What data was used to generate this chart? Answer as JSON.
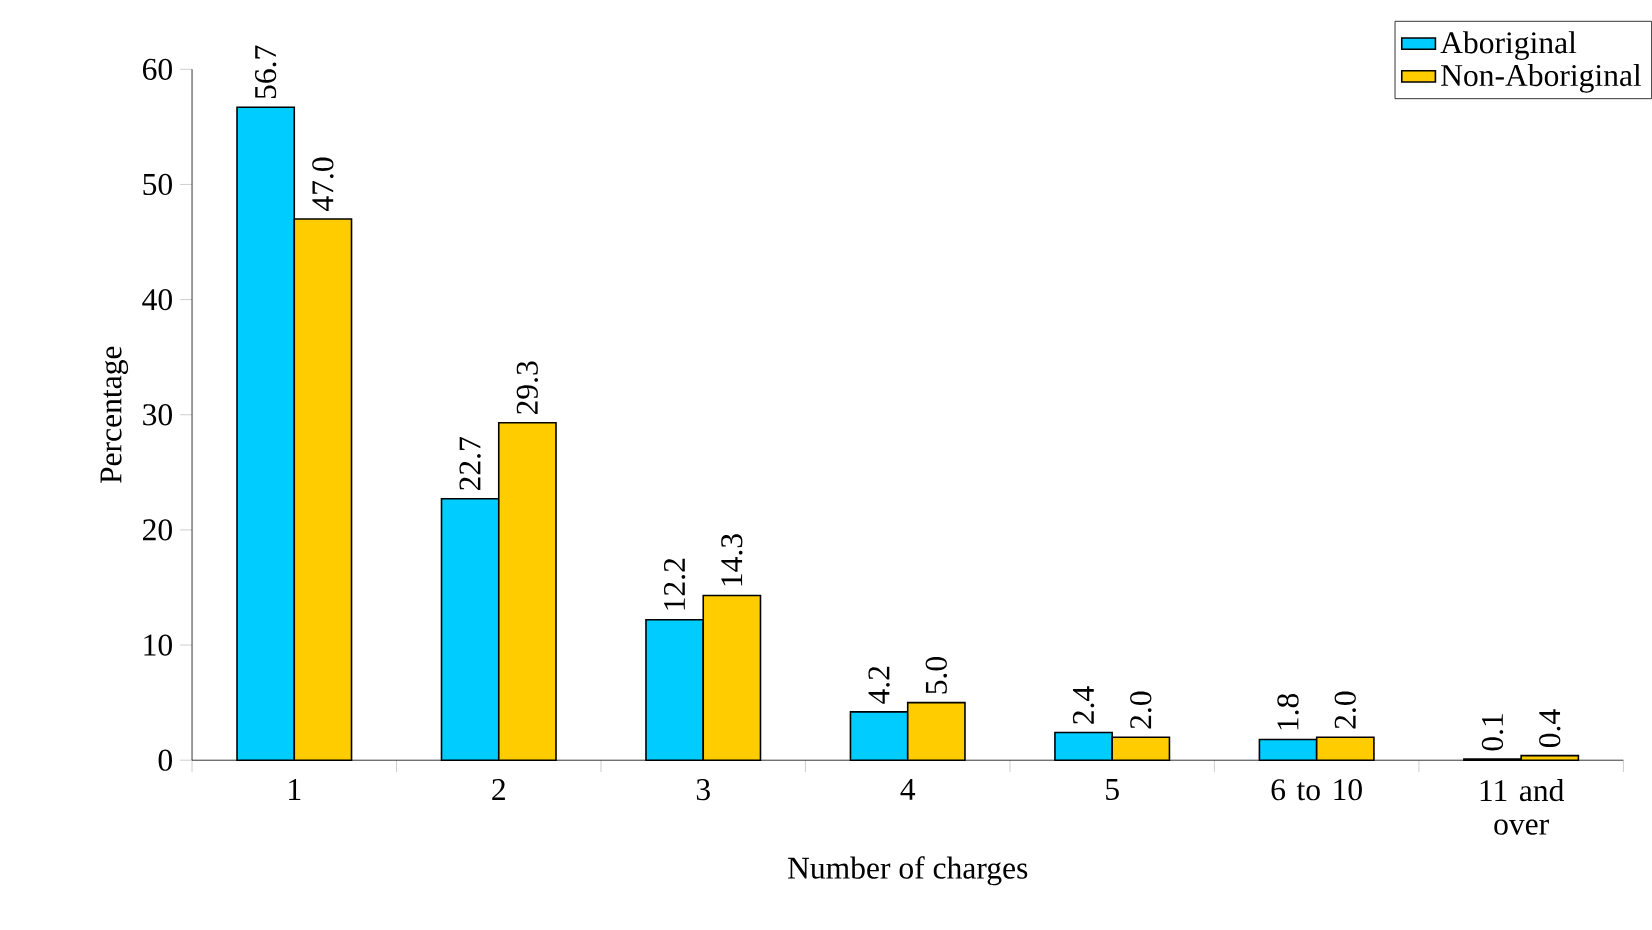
{
  "chart_data": {
    "type": "bar",
    "xlabel": "Number of charges",
    "ylabel": "Percentage",
    "categories": [
      "1",
      "2",
      "3",
      "4",
      "5",
      "6 to 10",
      "11 and over"
    ],
    "series": [
      {
        "name": "Aboriginal",
        "color": "#00ccff",
        "values": [
          56.7,
          22.7,
          12.2,
          4.2,
          2.4,
          1.8,
          0.1
        ],
        "value_labels": [
          "56.7",
          "22.7",
          "12.2",
          "4.2",
          "2.4",
          "1.8",
          "0.1"
        ]
      },
      {
        "name": "Non-Aboriginal",
        "color": "#ffcc00",
        "values": [
          47.0,
          29.3,
          14.3,
          5.0,
          2.0,
          2.0,
          0.4
        ],
        "value_labels": [
          "47.0",
          "29.3",
          "14.3",
          "5.0",
          "2.0",
          "2.0",
          "0.4"
        ]
      }
    ],
    "ylim": [
      0,
      60
    ],
    "yticks": [
      0,
      10,
      20,
      30,
      40,
      50,
      60
    ],
    "grid": false,
    "legend": "top right"
  }
}
